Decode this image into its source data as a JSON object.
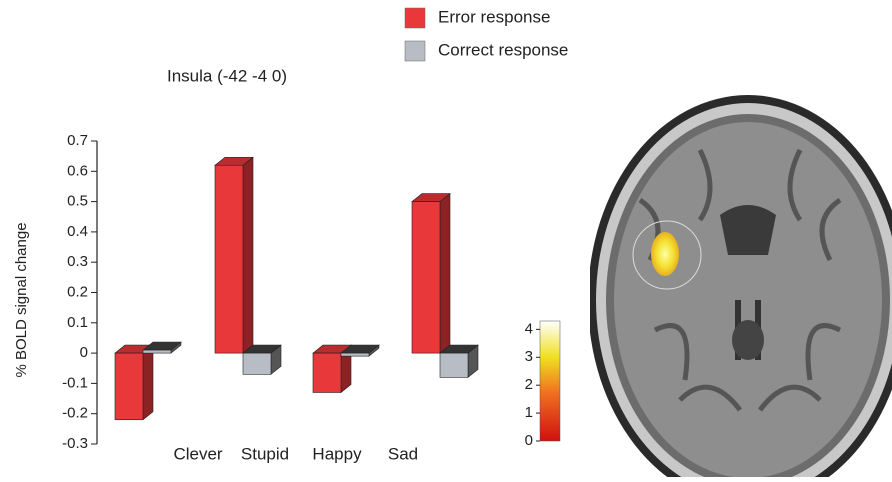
{
  "chart_data": {
    "type": "bar3d",
    "title": "Insula (-42 -4 0)",
    "y_label": "% BOLD signal change",
    "categories": [
      "Clever",
      "Stupid",
      "Happy",
      "Sad"
    ],
    "series": [
      {
        "name": "Error response",
        "color": "#e8383a",
        "values": [
          -0.22,
          0.62,
          -0.13,
          0.5
        ]
      },
      {
        "name": "Correct response",
        "color": "#b8bcc4",
        "values": [
          0.01,
          -0.07,
          -0.01,
          -0.08
        ]
      }
    ],
    "ylim": [
      -0.3,
      0.7
    ],
    "yticks": [
      -0.3,
      -0.2,
      -0.1,
      0,
      0.1,
      0.2,
      0.3,
      0.4,
      0.5,
      0.6,
      0.7
    ],
    "colorbar_lim": [
      0,
      4.3
    ],
    "colorbar_ticks": [
      0,
      1,
      2,
      3,
      4
    ]
  }
}
